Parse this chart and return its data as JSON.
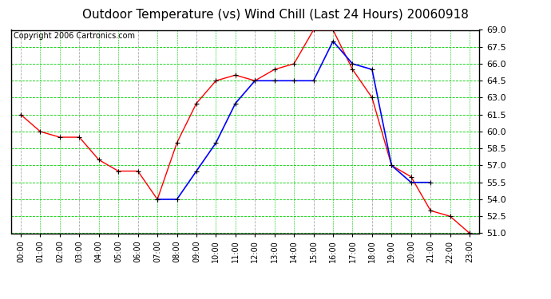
{
  "title": "Outdoor Temperature (vs) Wind Chill (Last 24 Hours) 20060918",
  "copyright": "Copyright 2006 Cartronics.com",
  "hours": [
    "00:00",
    "01:00",
    "02:00",
    "03:00",
    "04:00",
    "05:00",
    "06:00",
    "07:00",
    "08:00",
    "09:00",
    "10:00",
    "11:00",
    "12:00",
    "13:00",
    "14:00",
    "15:00",
    "16:00",
    "17:00",
    "18:00",
    "19:00",
    "20:00",
    "21:00",
    "22:00",
    "23:00"
  ],
  "temp": [
    61.5,
    60.0,
    59.5,
    59.5,
    57.5,
    56.5,
    56.5,
    54.0,
    59.0,
    62.5,
    64.5,
    65.0,
    64.5,
    65.5,
    66.0,
    69.0,
    69.0,
    65.5,
    63.0,
    57.0,
    56.0,
    53.0,
    52.5,
    51.0
  ],
  "windchill": [
    null,
    null,
    null,
    null,
    null,
    null,
    null,
    54.0,
    54.0,
    56.5,
    59.0,
    62.5,
    64.5,
    64.5,
    64.5,
    64.5,
    68.0,
    66.0,
    65.5,
    57.0,
    55.5,
    55.5,
    null,
    null
  ],
  "temp_color": "#FF0000",
  "windchill_color": "#0000FF",
  "bg_color": "#FFFFFF",
  "plot_bg_color": "#FFFFFF",
  "grid_green_color": "#00CC00",
  "grid_gray_color": "#AAAAAA",
  "yticks": [
    51.0,
    52.5,
    54.0,
    55.5,
    57.0,
    58.5,
    60.0,
    61.5,
    63.0,
    64.5,
    66.0,
    67.5,
    69.0
  ],
  "ylim_min": 51.0,
  "ylim_max": 69.0,
  "title_fontsize": 11,
  "copyright_fontsize": 7,
  "tick_fontsize": 8,
  "xtick_fontsize": 7
}
